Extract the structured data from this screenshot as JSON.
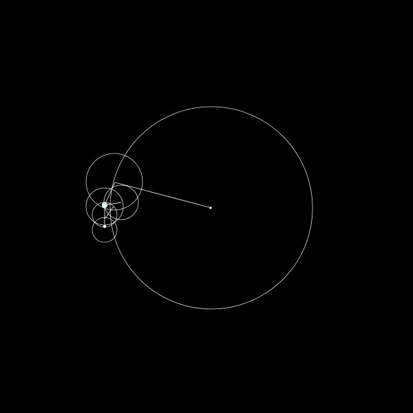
{
  "canvas": {
    "background": "#000000",
    "stroke_color": "#ffffff",
    "tip_dot_color": "#e8fff0"
  },
  "chain": {
    "circle_count": 6,
    "vector_count": 6,
    "shows_tip_point": true
  }
}
